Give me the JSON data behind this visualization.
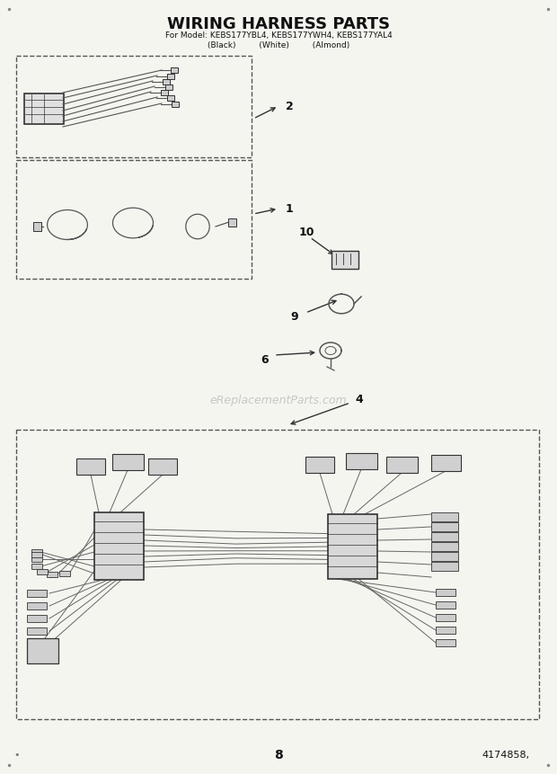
{
  "title": "WIRING HARNESS PARTS",
  "subtitle1": "For Model: KEBS177YBL4, KEBS177YWH4, KEBS177YAL4",
  "subtitle2": "(Black)         (White)         (Almond)",
  "bg_color": "#f5f5f0",
  "text_color": "#111111",
  "watermark": "eReplacementParts.com",
  "page_number": "8",
  "part_number": "4174858,"
}
